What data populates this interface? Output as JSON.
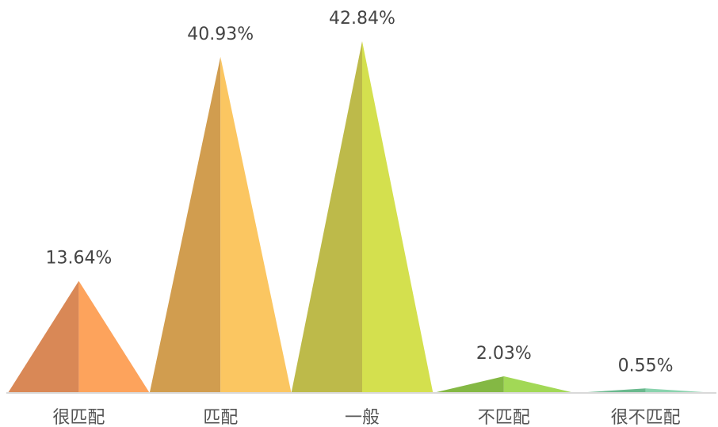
{
  "chart_data": {
    "type": "bar",
    "style": "pyramid-peaks",
    "categories": [
      "很匹配",
      "匹配",
      "一般",
      "不匹配",
      "很不匹配"
    ],
    "values": [
      13.64,
      40.93,
      42.84,
      2.03,
      0.55
    ],
    "value_labels": [
      "13.64%",
      "40.93%",
      "42.84%",
      "2.03%",
      "0.55%"
    ],
    "colors": {
      "light": [
        "#FDA35C",
        "#FBC661",
        "#D4E04E",
        "#A2D856",
        "#8AD3AE"
      ],
      "dark": [
        "#D98856",
        "#D19D4F",
        "#BDBA4A",
        "#84B844",
        "#6AB98E"
      ]
    },
    "axis_line_color": "#D9D9D9",
    "grid": false,
    "legend": "none"
  }
}
